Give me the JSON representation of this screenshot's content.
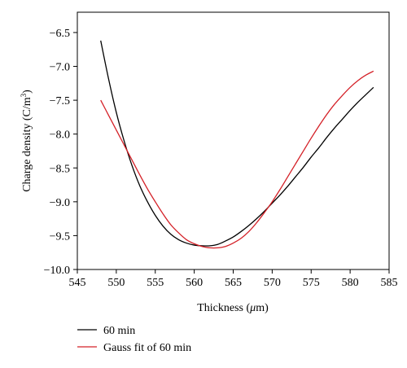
{
  "chart_data": {
    "type": "line",
    "title": "",
    "xlabel_main": "Thickness (",
    "xlabel_mu": "μ",
    "xlabel_rest": "m)",
    "ylabel_main": "Charge density (C/m",
    "ylabel_sup": "3",
    "ylabel_close": ")",
    "xlim": [
      545,
      585
    ],
    "ylim": [
      -10.0,
      -6.2
    ],
    "xticks": [
      545,
      550,
      555,
      560,
      565,
      570,
      575,
      580,
      585
    ],
    "yticks": [
      -10.0,
      -9.5,
      -9.0,
      -8.5,
      -8.0,
      -7.5,
      -7.0,
      -6.5
    ],
    "xtick_labels": [
      "545",
      "550",
      "555",
      "560",
      "565",
      "570",
      "575",
      "580",
      "585"
    ],
    "ytick_labels": [
      "−10.0",
      "−9.5",
      "−9.0",
      "−8.5",
      "−8.0",
      "−7.5",
      "−7.0",
      "−6.5"
    ],
    "grid": false,
    "legend_position": "below-left",
    "series": [
      {
        "name": "60 min",
        "color": "#000000",
        "x": [
          548,
          549,
          550,
          551,
          552,
          553,
          554,
          555,
          556,
          557,
          558,
          559,
          560,
          561,
          562,
          563,
          564,
          565,
          566,
          567,
          568,
          569,
          570,
          571,
          572,
          573,
          574,
          575,
          576,
          577,
          578,
          579,
          580,
          581,
          582,
          583
        ],
        "values": [
          -6.62,
          -7.18,
          -7.68,
          -8.1,
          -8.46,
          -8.76,
          -9.0,
          -9.2,
          -9.36,
          -9.48,
          -9.56,
          -9.61,
          -9.64,
          -9.65,
          -9.65,
          -9.63,
          -9.58,
          -9.52,
          -9.44,
          -9.35,
          -9.25,
          -9.14,
          -9.02,
          -8.9,
          -8.77,
          -8.63,
          -8.49,
          -8.34,
          -8.2,
          -8.05,
          -7.91,
          -7.78,
          -7.65,
          -7.53,
          -7.42,
          -7.31
        ]
      },
      {
        "name": "Gauss fit of 60 min",
        "color": "#d42027",
        "x": [
          548,
          549,
          550,
          551,
          552,
          553,
          554,
          555,
          556,
          557,
          558,
          559,
          560,
          561,
          562,
          563,
          564,
          565,
          566,
          567,
          568,
          569,
          570,
          571,
          572,
          573,
          574,
          575,
          576,
          577,
          578,
          579,
          580,
          581,
          582,
          583
        ],
        "values": [
          -7.5,
          -7.72,
          -7.94,
          -8.16,
          -8.38,
          -8.6,
          -8.81,
          -9.0,
          -9.18,
          -9.34,
          -9.46,
          -9.56,
          -9.62,
          -9.66,
          -9.68,
          -9.68,
          -9.66,
          -9.61,
          -9.54,
          -9.44,
          -9.31,
          -9.16,
          -9.0,
          -8.82,
          -8.63,
          -8.44,
          -8.25,
          -8.06,
          -7.88,
          -7.71,
          -7.56,
          -7.43,
          -7.31,
          -7.21,
          -7.13,
          -7.07
        ]
      }
    ]
  }
}
